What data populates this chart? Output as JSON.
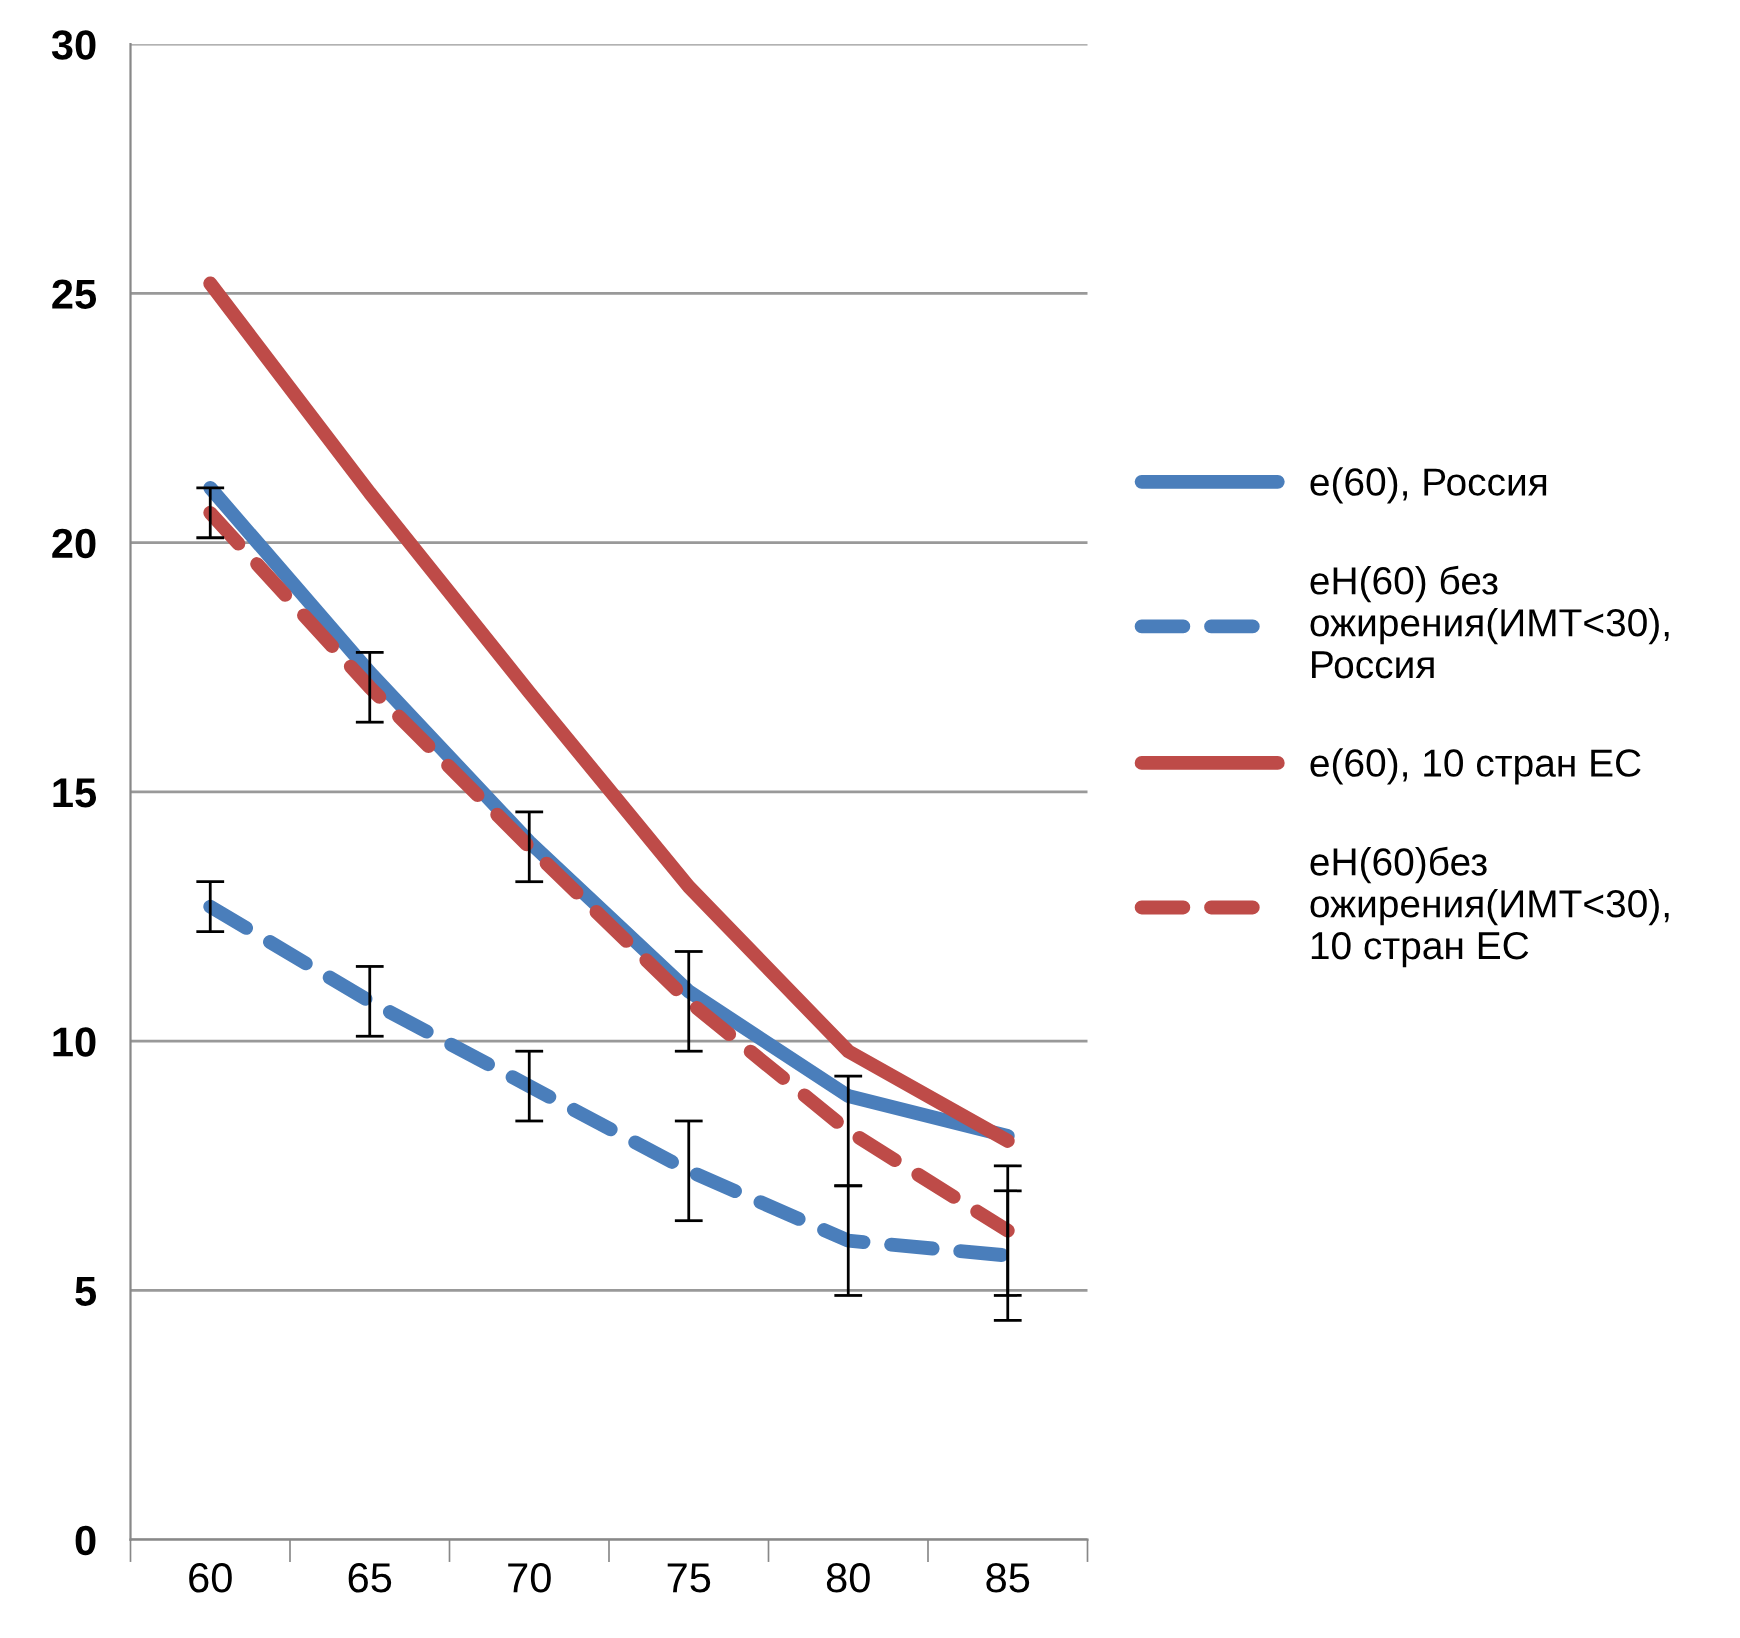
{
  "chart_data": {
    "type": "line",
    "categories": [
      "60",
      "65",
      "70",
      "75",
      "80",
      "85"
    ],
    "series": [
      {
        "name": "e(60), Россия",
        "color": "#4a7ebb",
        "line_style": "solid",
        "values": [
          21.1,
          17.4,
          14.0,
          11.0,
          8.9,
          8.1
        ]
      },
      {
        "name": "eH(60) без\nожирения(ИМТ<30),\nРоссия",
        "color": "#4a7ebb",
        "line_style": "dashed",
        "values": [
          12.7,
          10.8,
          9.1,
          7.4,
          6.0,
          5.7
        ],
        "errors": [
          0.5,
          0.7,
          0.7,
          1.0,
          1.1,
          1.3
        ]
      },
      {
        "name": "e(60), 10 стран ЕС",
        "color": "#be4b48",
        "line_style": "solid",
        "values": [
          25.2,
          21.0,
          17.0,
          13.1,
          9.8,
          8.0
        ]
      },
      {
        "name": "eH(60)без\nожирения(ИМТ<30),\n10 стран ЕС",
        "color": "#be4b48",
        "line_style": "dashed",
        "values": [
          20.6,
          17.1,
          13.9,
          10.8,
          8.2,
          6.2
        ],
        "errors": [
          0.5,
          0.7,
          0.7,
          1.0,
          1.1,
          1.3
        ]
      }
    ],
    "ylim": [
      0,
      30
    ],
    "yticks": [
      0,
      5,
      10,
      15,
      20,
      25,
      30
    ],
    "grid": "y",
    "legend": "right",
    "marker": "none"
  }
}
